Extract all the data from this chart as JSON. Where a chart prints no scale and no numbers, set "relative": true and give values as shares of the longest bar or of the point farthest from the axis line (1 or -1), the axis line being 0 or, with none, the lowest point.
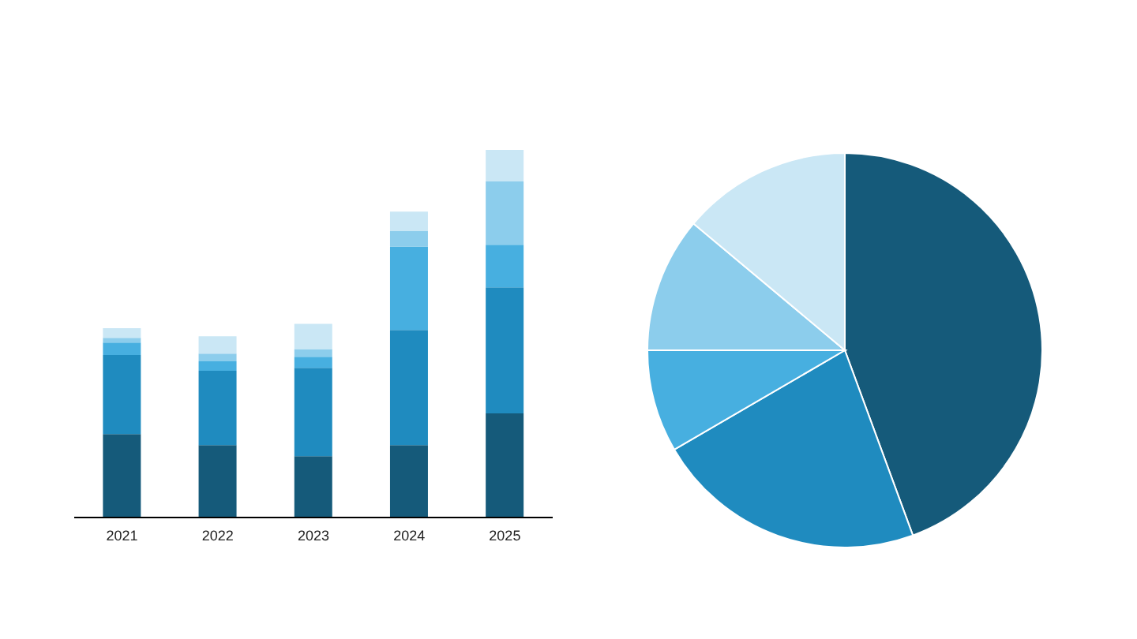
{
  "chart_data": [
    {
      "type": "bar",
      "stacked": true,
      "relative": true,
      "categories": [
        "2021",
        "2022",
        "2023",
        "2024",
        "2025"
      ],
      "series": [
        {
          "color": "#155a7a",
          "values": [
            0.227,
            0.197,
            0.167,
            0.197,
            0.283
          ]
        },
        {
          "color": "#1f8bbf",
          "values": [
            0.215,
            0.202,
            0.24,
            0.313,
            0.343
          ]
        },
        {
          "color": "#47afe0",
          "values": [
            0.034,
            0.026,
            0.03,
            0.227,
            0.116
          ]
        },
        {
          "color": "#8ccdec",
          "values": [
            0.013,
            0.021,
            0.021,
            0.043,
            0.172
          ]
        },
        {
          "color": "#cae7f5",
          "values": [
            0.026,
            0.047,
            0.069,
            0.052,
            0.086
          ]
        }
      ]
    },
    {
      "type": "pie",
      "categories": [
        null,
        null,
        null,
        null,
        null
      ],
      "values": [
        44.4,
        22.2,
        8.4,
        11.1,
        13.9
      ],
      "colors": [
        "#155a7a",
        "#1f8bbf",
        "#47afe0",
        "#8ccdec",
        "#cae7f5"
      ]
    }
  ]
}
